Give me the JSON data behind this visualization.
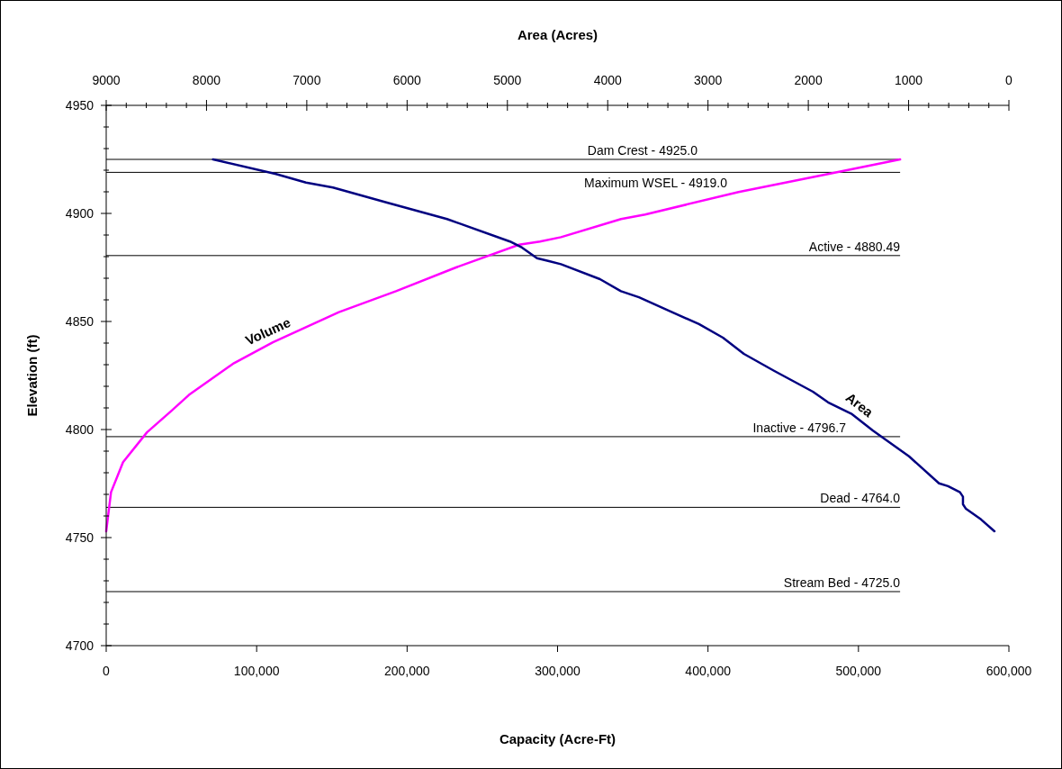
{
  "chart_data": {
    "type": "line",
    "xlabel": "Capacity (Acre-Ft)",
    "x2label": "Area (Acres)",
    "ylabel": "Elevation (ft)",
    "xlim": [
      0,
      600000
    ],
    "xticks": [
      {
        "value": 0,
        "label": "0"
      },
      {
        "value": 100000,
        "label": "100,000"
      },
      {
        "value": 200000,
        "label": "200,000"
      },
      {
        "value": 300000,
        "label": "300,000"
      },
      {
        "value": 400000,
        "label": "400,000"
      },
      {
        "value": 500000,
        "label": "500,000"
      },
      {
        "value": 600000,
        "label": "600,000"
      }
    ],
    "x2lim": [
      9000,
      0
    ],
    "x2ticks": [
      9000,
      {
        "value": 8800,
        "label": null
      },
      {
        "value": 8600,
        "label": null
      },
      {
        "value": 8400,
        "label": null
      },
      {
        "value": 8200,
        "label": null
      },
      8000,
      {
        "value": 7800,
        "label": null
      },
      {
        "value": 7600,
        "label": null
      },
      {
        "value": 7400,
        "label": null
      },
      {
        "value": 7200,
        "label": null
      },
      7000,
      {
        "value": 6800,
        "label": null
      },
      {
        "value": 6600,
        "label": null
      },
      {
        "value": 6400,
        "label": null
      },
      {
        "value": 6200,
        "label": null
      },
      6000,
      {
        "value": 5800,
        "label": null
      },
      {
        "value": 5600,
        "label": null
      },
      {
        "value": 5400,
        "label": null
      },
      {
        "value": 5200,
        "label": null
      },
      5000,
      {
        "value": 4800,
        "label": null
      },
      {
        "value": 4600,
        "label": null
      },
      {
        "value": 4400,
        "label": null
      },
      {
        "value": 4200,
        "label": null
      },
      4000,
      {
        "value": 3800,
        "label": null
      },
      {
        "value": 3600,
        "label": null
      },
      {
        "value": 3400,
        "label": null
      },
      {
        "value": 3200,
        "label": null
      },
      3000,
      {
        "value": 2800,
        "label": null
      },
      {
        "value": 2600,
        "label": null
      },
      {
        "value": 2400,
        "label": null
      },
      {
        "value": 2200,
        "label": null
      },
      2000,
      {
        "value": 1800,
        "label": null
      },
      {
        "value": 1600,
        "label": null
      },
      {
        "value": 1400,
        "label": null
      },
      {
        "value": 1200,
        "label": null
      },
      1000,
      {
        "value": 800,
        "label": null
      },
      {
        "value": 600,
        "label": null
      },
      {
        "value": 400,
        "label": null
      },
      {
        "value": 200,
        "label": null
      },
      0
    ],
    "ylim": [
      4700,
      4950
    ],
    "yticks": [
      4700,
      {
        "value": 4710,
        "label": null
      },
      {
        "value": 4720,
        "label": null
      },
      {
        "value": 4730,
        "label": null
      },
      {
        "value": 4740,
        "label": null
      },
      4750,
      {
        "value": 4760,
        "label": null
      },
      {
        "value": 4770,
        "label": null
      },
      {
        "value": 4780,
        "label": null
      },
      {
        "value": 4790,
        "label": null
      },
      4800,
      {
        "value": 4810,
        "label": null
      },
      {
        "value": 4820,
        "label": null
      },
      {
        "value": 4830,
        "label": null
      },
      {
        "value": 4840,
        "label": null
      },
      4850,
      {
        "value": 4860,
        "label": null
      },
      {
        "value": 4870,
        "label": null
      },
      {
        "value": 4880,
        "label": null
      },
      {
        "value": 4890,
        "label": null
      },
      4900,
      {
        "value": 4910,
        "label": null
      },
      {
        "value": 4920,
        "label": null
      },
      {
        "value": 4930,
        "label": null
      },
      {
        "value": 4940,
        "label": null
      },
      4950
    ],
    "grid": false,
    "legend": false,
    "marker": "none",
    "line_style": "solid",
    "series": [
      {
        "name": "Volume",
        "color": "#ff00ff",
        "x": [
          0,
          3200,
          11200,
          27100,
          43100,
          55000,
          84900,
          110800,
          154700,
          192600,
          232500,
          274400,
          288300,
          302300,
          342200,
          358200,
          420300,
          479800,
          527700
        ],
        "values": [
          4752.9,
          4771,
          4784.9,
          4798.7,
          4808.5,
          4816,
          4830.7,
          4840.4,
          4854.3,
          4864,
          4875,
          4885.5,
          4887,
          4889,
          4897.4,
          4899.5,
          4909.9,
          4918.2,
          4925
        ]
      },
      {
        "name": "Area",
        "color": "#000080",
        "axis": "x2",
        "x": [
          7935,
          7307,
          7008,
          6739,
          6200,
          5602,
          4974,
          4854,
          4705,
          4585,
          4466,
          4077,
          3868,
          3688,
          3359,
          3090,
          2851,
          2642,
          2342,
          1954,
          1803,
          1564,
          1355,
          996,
          697,
          607,
          488,
          458,
          458,
          428,
          278,
          144
        ],
        "values": [
          4925,
          4918.2,
          4914.3,
          4912,
          4905,
          4897.4,
          4887,
          4884.2,
          4879.3,
          4877.9,
          4876.5,
          4869.6,
          4864,
          4861.2,
          4854.3,
          4848.8,
          4842.5,
          4835,
          4827.2,
          4817.5,
          4812.6,
          4807.1,
          4799.5,
          4787.6,
          4775.1,
          4773.8,
          4771,
          4768.9,
          4765.4,
          4763.3,
          4758.4,
          4752.9
        ]
      }
    ],
    "ref_lines": [
      {
        "axis": "y",
        "value": 4925.0,
        "label": "Dam Crest - 4925.0"
      },
      {
        "axis": "y",
        "value": 4919.0,
        "label": "Maximum WSEL - 4919.0"
      },
      {
        "axis": "y",
        "value": 4880.49,
        "label": "Active - 4880.49"
      },
      {
        "axis": "y",
        "value": 4796.7,
        "label": "Inactive - 4796.7"
      },
      {
        "axis": "y",
        "value": 4764.0,
        "label": "Dead - 4764.0"
      },
      {
        "axis": "y",
        "value": 4725.0,
        "label": "Stream Bed - 4725.0"
      }
    ]
  }
}
